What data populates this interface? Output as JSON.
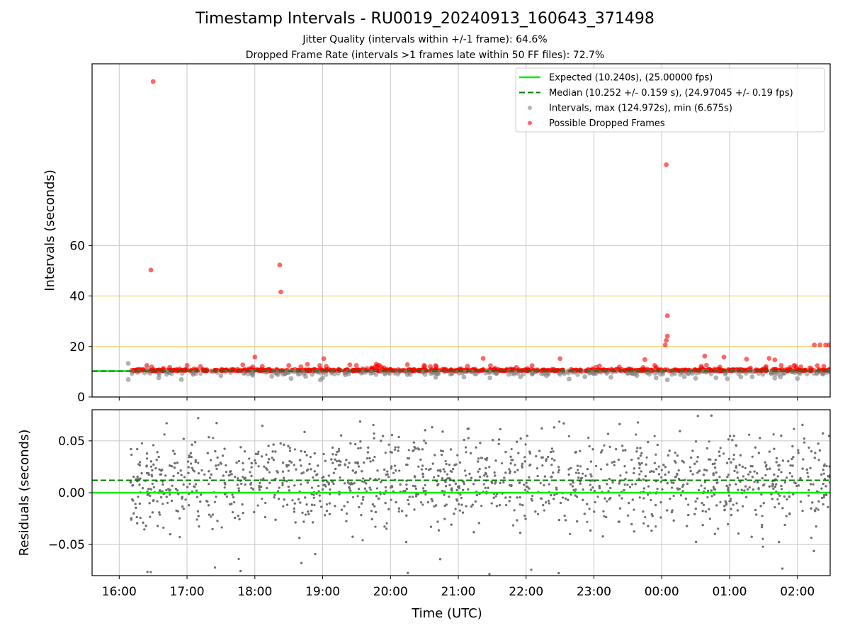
{
  "title": "Timestamp Intervals - RU0019_20240913_160643_371498",
  "subtitle_lines": [
    "Jitter Quality (intervals within +/-1 frame): 64.6%",
    "Dropped Frame Rate (intervals >1 frames late within 50 FF files): 72.7%"
  ],
  "colors": {
    "expected": "#00ee00",
    "median": "#007f00",
    "intervals": "#808080",
    "dropped": "#ff0000",
    "threshold_lines": "#ffc44d",
    "grid": "#c8c8c8"
  },
  "chart_data": [
    {
      "type": "scatter",
      "panel": "intervals",
      "ylabel": "Intervals (seconds)",
      "xlabel": "",
      "yticks": [
        0,
        20,
        40,
        60
      ],
      "xticks": [
        "16:00",
        "17:00",
        "18:00",
        "19:00",
        "20:00",
        "21:00",
        "22:00",
        "23:00",
        "00:00",
        "01:00",
        "02:00"
      ],
      "xlim": [
        "15:36",
        "02:29"
      ],
      "ylim": [
        0,
        132
      ],
      "grid": true,
      "legend_placement": "top-right",
      "horizontal_lines": [
        20,
        40,
        60
      ],
      "expected_value": 10.24,
      "median_value": 10.252,
      "series": [
        {
          "name": "Expected (10.240s), (25.00000 fps)",
          "style": "line"
        },
        {
          "name": "Median (10.252 +/- 0.159 s), (24.97045 +/- 0.19 fps)",
          "style": "dashed-line"
        },
        {
          "name": "Intervals, max (124.972s), min (6.675s)",
          "style": "gray-dots",
          "points": [
            [
              "16:08",
              13.3
            ],
            [
              "16:08",
              6.9
            ],
            [
              "16:25",
              11.6
            ],
            [
              "16:35",
              7.6
            ],
            [
              "16:55",
              6.9
            ],
            [
              "17:05",
              9.4
            ],
            [
              "17:30",
              8.4
            ],
            [
              "17:58",
              8.6
            ],
            [
              "18:15",
              8.2
            ],
            [
              "18:32",
              7.3
            ],
            [
              "18:45",
              8.1
            ],
            [
              "18:58",
              6.8
            ],
            [
              "19:00",
              7.6
            ],
            [
              "19:20",
              8.8
            ],
            [
              "19:55",
              9.1
            ],
            [
              "20:15",
              8.9
            ],
            [
              "20:40",
              7.8
            ],
            [
              "21:05",
              7.9
            ],
            [
              "21:28",
              7.6
            ],
            [
              "21:55",
              8.0
            ],
            [
              "22:18",
              8.4
            ],
            [
              "22:38",
              7.1
            ],
            [
              "22:52",
              8.0
            ],
            [
              "23:15",
              7.8
            ],
            [
              "23:38",
              8.5
            ],
            [
              "23:55",
              7.6
            ],
            [
              "00:05",
              6.8
            ],
            [
              "00:20",
              8.0
            ],
            [
              "00:30",
              7.4
            ],
            [
              "00:48",
              7.6
            ],
            [
              "00:58",
              7.2
            ],
            [
              "01:10",
              7.9
            ],
            [
              "01:20",
              8.0
            ],
            [
              "01:40",
              7.5
            ],
            [
              "01:45",
              7.9
            ],
            [
              "02:00",
              7.3
            ]
          ]
        },
        {
          "name": "Possible Dropped Frames",
          "style": "red-dots",
          "points": [
            [
              "16:28",
              50.3
            ],
            [
              "16:30",
              124.97
            ],
            [
              "18:22",
              52.3
            ],
            [
              "18:23",
              41.6
            ],
            [
              "18:00",
              15.8
            ],
            [
              "19:01",
              15.2
            ],
            [
              "21:22",
              15.3
            ],
            [
              "22:30",
              15.2
            ],
            [
              "23:45",
              14.8
            ],
            [
              "00:04",
              92.0
            ],
            [
              "00:05",
              32.2
            ],
            [
              "00:05",
              24.1
            ],
            [
              "00:04",
              22.4
            ],
            [
              "00:03",
              20.6
            ],
            [
              "00:38",
              16.2
            ],
            [
              "00:55",
              15.8
            ],
            [
              "01:15",
              15.0
            ],
            [
              "01:35",
              15.3
            ],
            [
              "01:40",
              14.7
            ],
            [
              "02:15",
              20.6
            ],
            [
              "02:20",
              20.6
            ],
            [
              "02:25",
              20.6
            ],
            [
              "02:28",
              20.6
            ]
          ]
        }
      ]
    },
    {
      "type": "scatter",
      "panel": "residuals",
      "ylabel": "Residuals (seconds)",
      "xlabel": "Time (UTC)",
      "yticks": [
        -0.05,
        0.0,
        0.05
      ],
      "ytick_labels": [
        "−0.05",
        "0.00",
        "0.05"
      ],
      "xticks": [
        "16:00",
        "17:00",
        "18:00",
        "19:00",
        "20:00",
        "21:00",
        "22:00",
        "23:00",
        "00:00",
        "01:00",
        "02:00"
      ],
      "xlim": [
        "15:36",
        "02:29"
      ],
      "ylim": [
        -0.08,
        0.08
      ],
      "grid": true,
      "expected_value": 0.0,
      "median_value": 0.012,
      "range_x": [
        "16:10",
        "02:29"
      ],
      "range_y": [
        -0.08,
        0.08
      ],
      "approx_point_count": 2400
    }
  ]
}
